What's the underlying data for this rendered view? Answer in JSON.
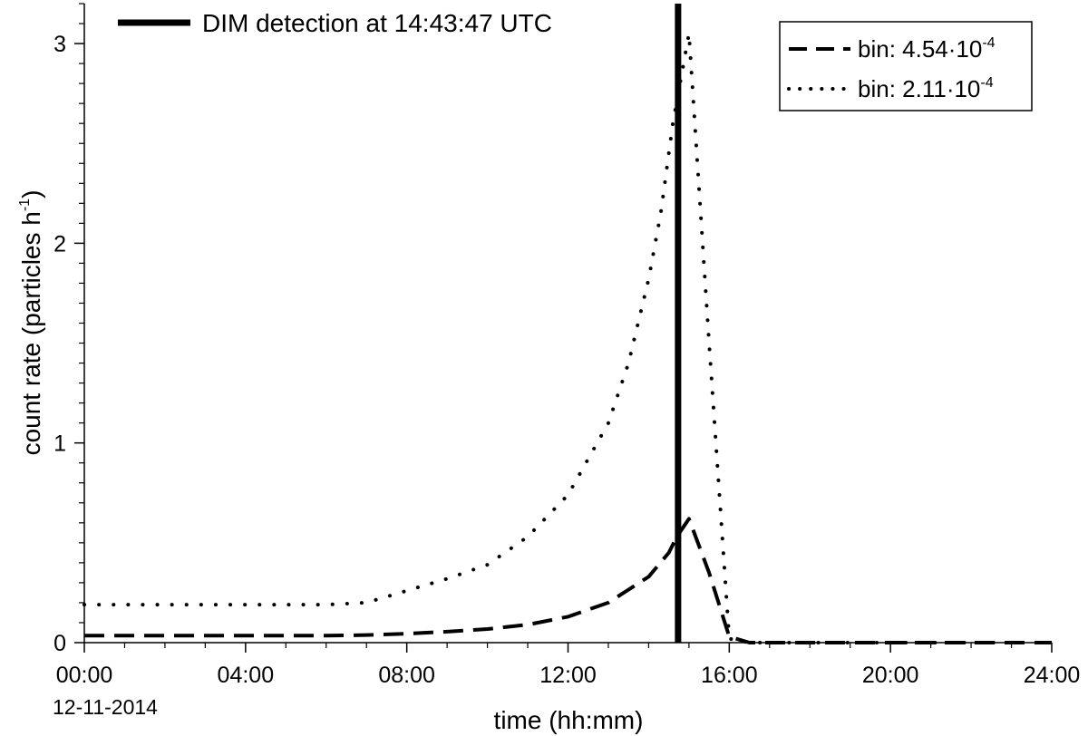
{
  "chart_data": {
    "type": "line",
    "xlabel": "time (hh:mm)",
    "ylabel": "count rate (particles h",
    "ylabel_sup": "-1",
    "ylabel_end": ")",
    "date_label": "12-11-2014",
    "xlim": [
      0,
      24
    ],
    "ylim": [
      0,
      3.2
    ],
    "x_ticks": [
      0,
      4,
      8,
      12,
      16,
      20,
      24
    ],
    "x_tick_labels": [
      "00:00",
      "04:00",
      "08:00",
      "12:00",
      "16:00",
      "20:00",
      "24:00"
    ],
    "y_ticks": [
      0,
      1,
      2,
      3
    ],
    "y_tick_labels": [
      "0",
      "1",
      "2",
      "3"
    ],
    "grid": false,
    "legend_position": "top-right",
    "annotation": {
      "label": "DIM detection at 14:43:47 UTC",
      "x": 14.73
    },
    "series": [
      {
        "name_base": "bin: 4.54·10",
        "name_sup": "-4",
        "style": "dashed",
        "x": [
          0,
          2,
          4,
          6,
          7,
          8,
          9,
          10,
          11,
          12,
          13,
          14,
          14.5,
          14.7,
          15,
          15.5,
          16,
          16.5,
          18,
          20,
          22,
          24
        ],
        "y": [
          0.035,
          0.035,
          0.035,
          0.035,
          0.038,
          0.045,
          0.055,
          0.068,
          0.09,
          0.13,
          0.2,
          0.33,
          0.45,
          0.53,
          0.62,
          0.35,
          0.03,
          0.0,
          0.0,
          0.0,
          0.0,
          0.0
        ]
      },
      {
        "name_base": "bin: 2.11·10",
        "name_sup": "-4",
        "style": "dotted",
        "x": [
          0,
          2,
          4,
          6,
          7,
          8,
          9,
          10,
          11,
          12,
          13,
          13.5,
          14,
          14.3,
          14.6,
          15,
          15.5,
          16,
          16.5,
          18,
          20,
          22,
          24
        ],
        "y": [
          0.19,
          0.19,
          0.19,
          0.19,
          0.2,
          0.26,
          0.32,
          0.39,
          0.53,
          0.74,
          1.1,
          1.4,
          1.82,
          2.15,
          2.6,
          3.05,
          1.5,
          0.02,
          0.0,
          0.0,
          0.0,
          0.0,
          0.0
        ]
      }
    ]
  }
}
